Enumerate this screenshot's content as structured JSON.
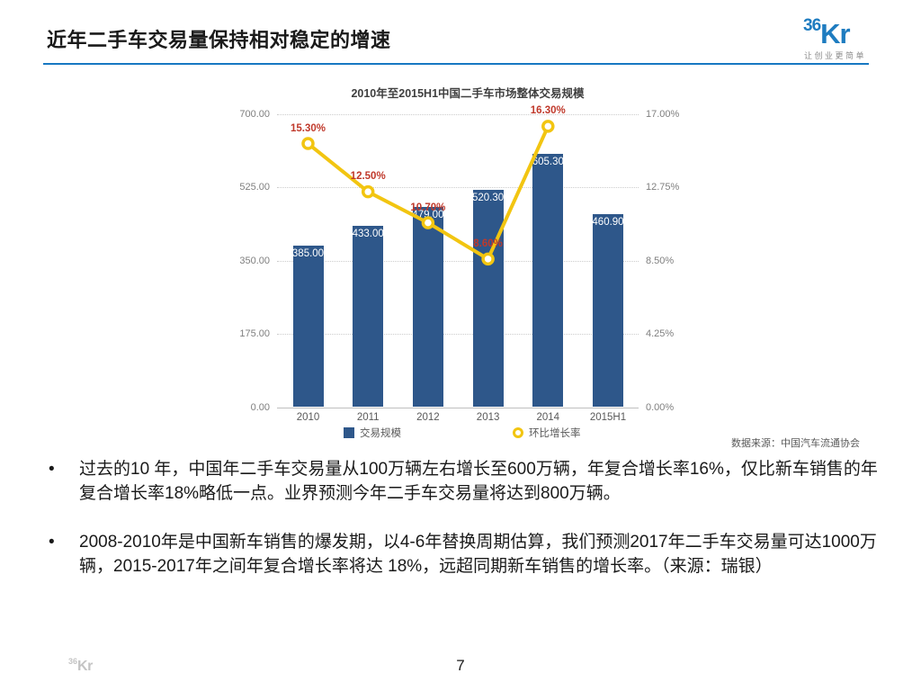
{
  "header": {
    "title": "近年二手车交易量保持相对稳定的增速",
    "logo": {
      "part_36": "36",
      "part_kr": "Kr",
      "tagline": "让创业更简单"
    }
  },
  "chart_data": {
    "type": "bar",
    "combo": "bar+line",
    "title": "2010年至2015H1中国二手车市场整体交易规模",
    "categories": [
      "2010",
      "2011",
      "2012",
      "2013",
      "2014",
      "2015H1"
    ],
    "series": [
      {
        "name": "交易规模",
        "type": "bar",
        "axis": "left",
        "color": "#2e578a",
        "values": [
          385.0,
          433.0,
          479.0,
          520.3,
          605.3,
          460.9
        ],
        "labels": [
          "385.00",
          "433.00",
          "479.00",
          "520.30",
          "605.30",
          "460.90"
        ]
      },
      {
        "name": "环比增长率",
        "type": "line",
        "axis": "right",
        "color": "#f2c511",
        "label_color": "#c0392b",
        "values": [
          15.3,
          12.5,
          10.7,
          8.6,
          16.3
        ],
        "labels": [
          "15.30%",
          "12.50%",
          "10.70%",
          "8.60%",
          "16.30%"
        ]
      }
    ],
    "left_axis": {
      "min": 0,
      "max": 700,
      "ticks": [
        "0.00",
        "175.00",
        "350.00",
        "525.00",
        "700.00"
      ]
    },
    "right_axis": {
      "min": 0,
      "max": 17,
      "ticks": [
        "0.00%",
        "4.25%",
        "8.50%",
        "12.75%",
        "17.00%"
      ]
    },
    "grid": "horizontal-dotted",
    "legend_position": "bottom",
    "legend": [
      {
        "label": "交易规模",
        "marker": "square",
        "color": "#2e578a"
      },
      {
        "label": "环比增长率",
        "marker": "ring",
        "color": "#f2c511"
      }
    ]
  },
  "source_note": "数据来源：中国汽车流通协会",
  "bullets": [
    "过去的10 年，中国年二手车交易量从100万辆左右增长至600万辆，年复合增长率16%，仅比新车销售的年复合增长率18%略低一点。业界预测今年二手车交易量将达到800万辆。",
    "2008-2010年是中国新车销售的爆发期，以4-6年替换周期估算，我们预测2017年二手车交易量可达1000万辆，2015-2017年之间年复合增长率将达 18%，远超同期新车销售的增长率。（来源：瑞银）"
  ],
  "footer": {
    "page_number": "7",
    "watermark_36": "36",
    "watermark_kr": "Kr"
  }
}
